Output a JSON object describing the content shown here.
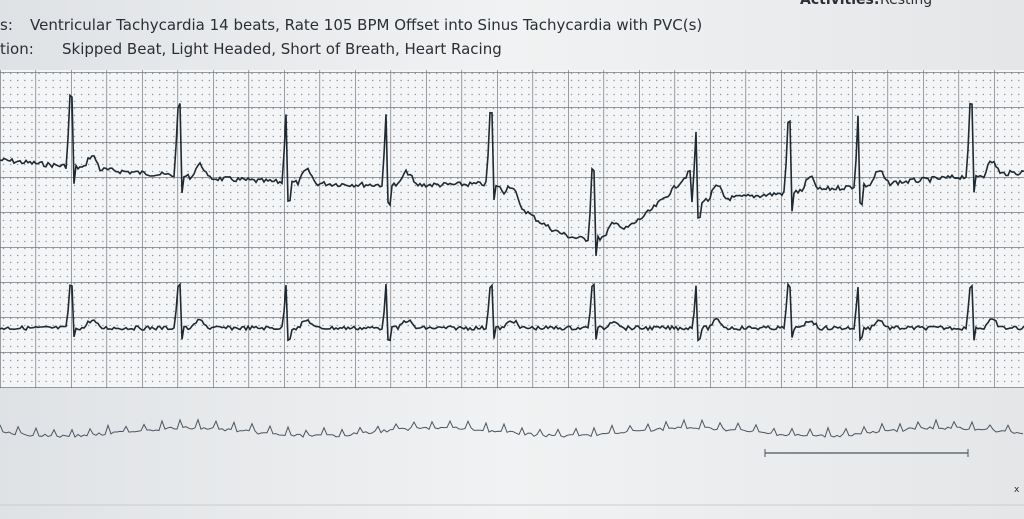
{
  "header": {
    "activities_label": "Activities:",
    "activities_value": "Resting",
    "rows": [
      {
        "label": "s:",
        "text": "Ventricular Tachycardia 14 beats, Rate 105 BPM Offset into Sinus Tachycardia with PVC(s)"
      },
      {
        "label": "tion:",
        "text": "Skipped Beat, Light Headed, Short of Breath, Heart Racing"
      }
    ]
  },
  "footer": {
    "mark": "x"
  }
}
